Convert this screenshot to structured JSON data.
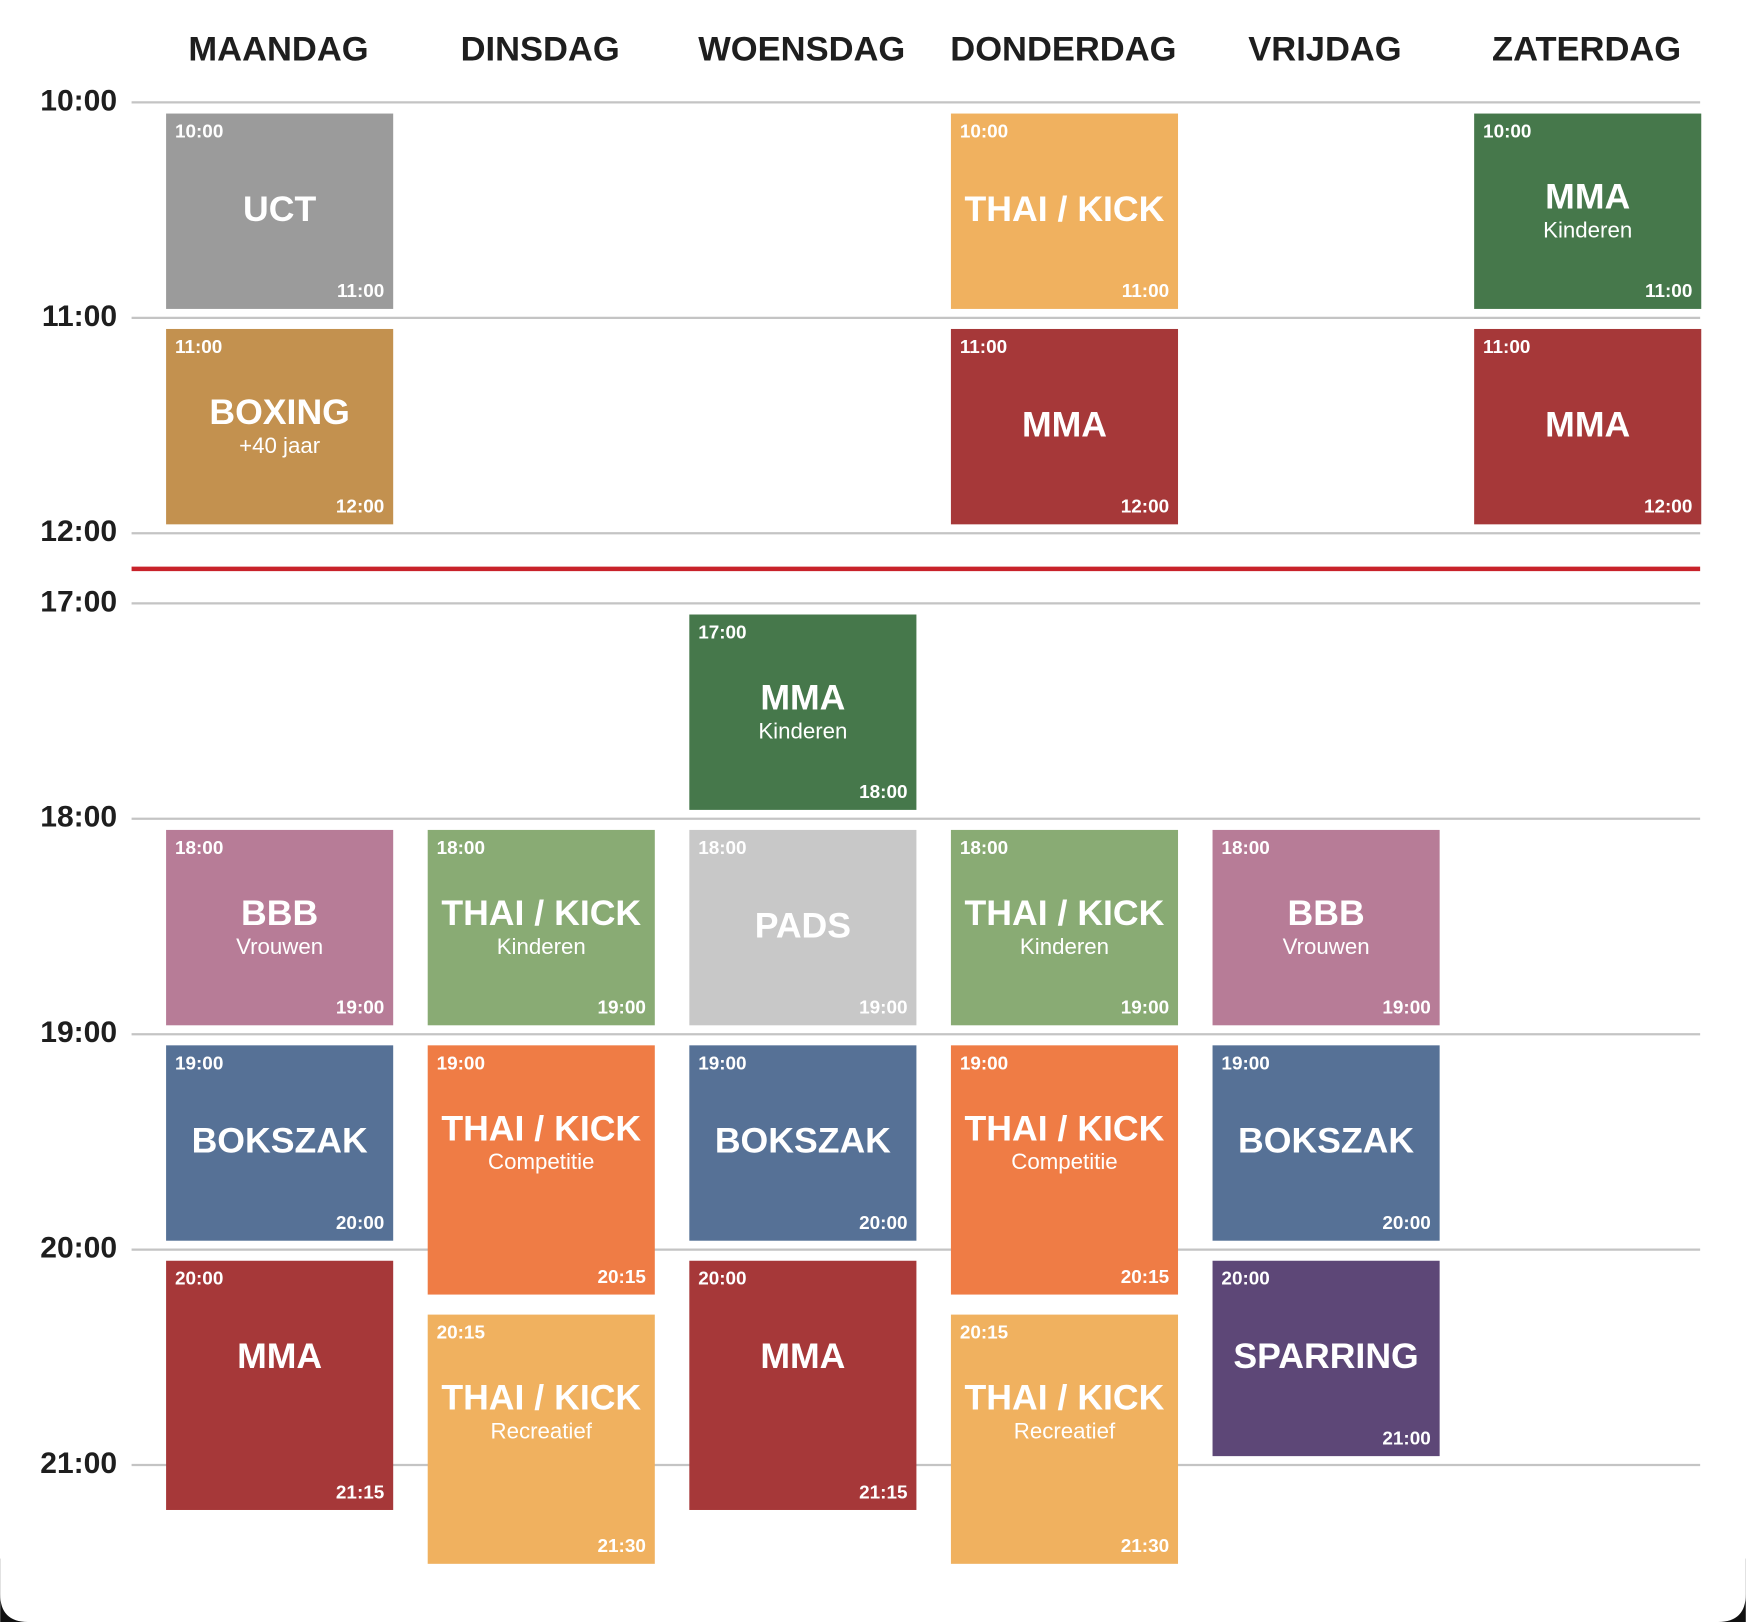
{
  "schedule": {
    "times": [
      "10:00",
      "11:00",
      "12:00",
      "17:00",
      "18:00",
      "19:00",
      "20:00",
      "21:00"
    ],
    "days": [
      {
        "name": "MAANDAG",
        "sessions": [
          {
            "start": "10:00",
            "end": "11:00",
            "title": "UCT",
            "color": "#9b9b9b"
          },
          {
            "start": "11:00",
            "end": "12:00",
            "title": "BOXING",
            "subtitle": "+40 jaar",
            "color": "#c3914f"
          },
          {
            "start": "18:00",
            "end": "19:00",
            "title": "BBB",
            "subtitle": "Vrouwen",
            "color": "#b77c97"
          },
          {
            "start": "19:00",
            "end": "20:00",
            "title": "BOKSZAK",
            "color": "#567196"
          },
          {
            "start": "20:00",
            "end": "21:15",
            "title": "MMA",
            "color": "#a63839"
          }
        ]
      },
      {
        "name": "DINSDAG",
        "sessions": [
          {
            "start": "18:00",
            "end": "19:00",
            "title": "THAI / KICK",
            "subtitle": "Kinderen",
            "color": "#89ab74"
          },
          {
            "start": "19:00",
            "end": "20:15",
            "title": "THAI / KICK",
            "subtitle": "Competitie",
            "color": "#ef7c45"
          },
          {
            "start": "20:15",
            "end": "21:30",
            "title": "THAI / KICK",
            "subtitle": "Recreatief",
            "color": "#f0b15f"
          }
        ]
      },
      {
        "name": "WOENSDAG",
        "sessions": [
          {
            "start": "17:00",
            "end": "18:00",
            "title": "MMA",
            "subtitle": "Kinderen",
            "color": "#46784b"
          },
          {
            "start": "18:00",
            "end": "19:00",
            "title": "PADS",
            "color": "#c8c8c8"
          },
          {
            "start": "19:00",
            "end": "20:00",
            "title": "BOKSZAK",
            "color": "#567196"
          },
          {
            "start": "20:00",
            "end": "21:15",
            "title": "MMA",
            "color": "#a63839"
          }
        ]
      },
      {
        "name": "DONDERDAG",
        "sessions": [
          {
            "start": "10:00",
            "end": "11:00",
            "title": "THAI / KICK",
            "color": "#f0b15f"
          },
          {
            "start": "11:00",
            "end": "12:00",
            "title": "MMA",
            "color": "#a63839"
          },
          {
            "start": "18:00",
            "end": "19:00",
            "title": "THAI / KICK",
            "subtitle": "Kinderen",
            "color": "#89ab74"
          },
          {
            "start": "19:00",
            "end": "20:15",
            "title": "THAI / KICK",
            "subtitle": "Competitie",
            "color": "#ef7c45"
          },
          {
            "start": "20:15",
            "end": "21:30",
            "title": "THAI / KICK",
            "subtitle": "Recreatief",
            "color": "#f0b15f"
          }
        ]
      },
      {
        "name": "VRIJDAG",
        "sessions": [
          {
            "start": "18:00",
            "end": "19:00",
            "title": "BBB",
            "subtitle": "Vrouwen",
            "color": "#b77c97"
          },
          {
            "start": "19:00",
            "end": "20:00",
            "title": "BOKSZAK",
            "color": "#567196"
          },
          {
            "start": "20:00",
            "end": "21:00",
            "title": "SPARRING",
            "color": "#5d4777"
          }
        ]
      },
      {
        "name": "ZATERDAG",
        "sessions": [
          {
            "start": "10:00",
            "end": "11:00",
            "title": "MMA",
            "subtitle": "Kinderen",
            "color": "#46784b"
          },
          {
            "start": "11:00",
            "end": "12:00",
            "title": "MMA",
            "color": "#a63839"
          }
        ]
      }
    ]
  }
}
